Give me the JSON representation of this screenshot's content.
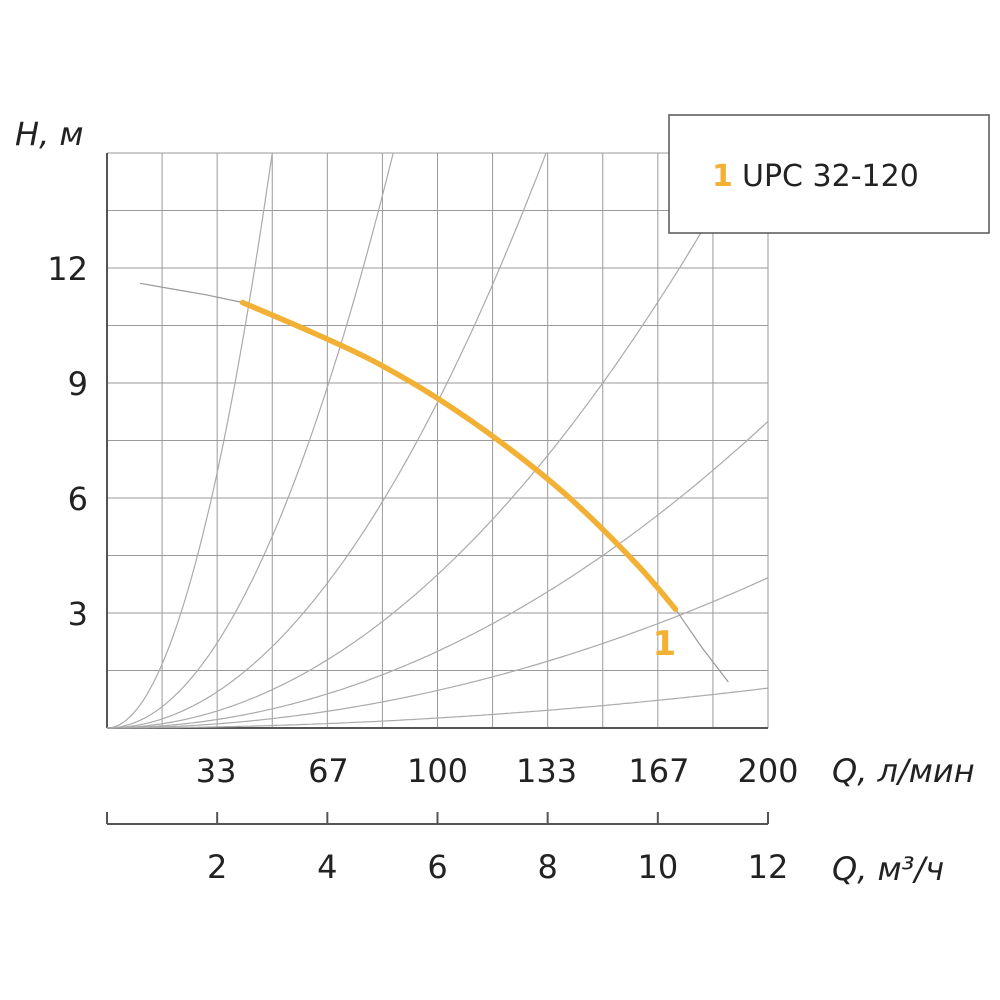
{
  "chart_data": {
    "type": "line",
    "title": "",
    "ylabel": "H, м",
    "xlabel": "Q, л/мин",
    "xlabel2": "Q, м³/ч",
    "ylim": [
      0,
      15
    ],
    "xlim": [
      0,
      200
    ],
    "yticks": [
      "3",
      "6",
      "9",
      "12"
    ],
    "yticks_values": [
      3,
      6,
      9,
      12
    ],
    "xticks": [
      "33",
      "67",
      "100",
      "133",
      "167",
      "200"
    ],
    "xticks_values": [
      33,
      67,
      100,
      133,
      167,
      200
    ],
    "xticks2": [
      "2",
      "4",
      "6",
      "8",
      "10",
      "12"
    ],
    "xticks2_values": [
      2,
      4,
      6,
      8,
      10,
      12
    ],
    "grid": true,
    "legend_position": "top-right",
    "series": [
      {
        "name": "UPC 32-120",
        "label": "1",
        "color": "#f2b134",
        "x": [
          41,
          60,
          80,
          100,
          120,
          140,
          160,
          172
        ],
        "y": [
          11.1,
          10.4,
          9.6,
          8.6,
          7.4,
          6.0,
          4.3,
          3.1
        ]
      }
    ],
    "reference_curves": [
      {
        "k": 0.006,
        "color": "#aaaaaa"
      },
      {
        "k": 0.002,
        "color": "#aaaaaa"
      },
      {
        "k": 0.00085,
        "color": "#aaaaaa"
      },
      {
        "k": 0.0004,
        "color": "#aaaaaa"
      },
      {
        "k": 0.0002,
        "color": "#aaaaaa"
      },
      {
        "k": 9.8e-05,
        "color": "#aaaaaa"
      },
      {
        "k": 2.6e-05,
        "color": "#aaaaaa"
      }
    ]
  },
  "legend": {
    "number": "1",
    "name": "UPC 32-120"
  },
  "colors": {
    "grid": "#9a9a9a",
    "accent": "#f2b134",
    "axis": "#555555"
  }
}
